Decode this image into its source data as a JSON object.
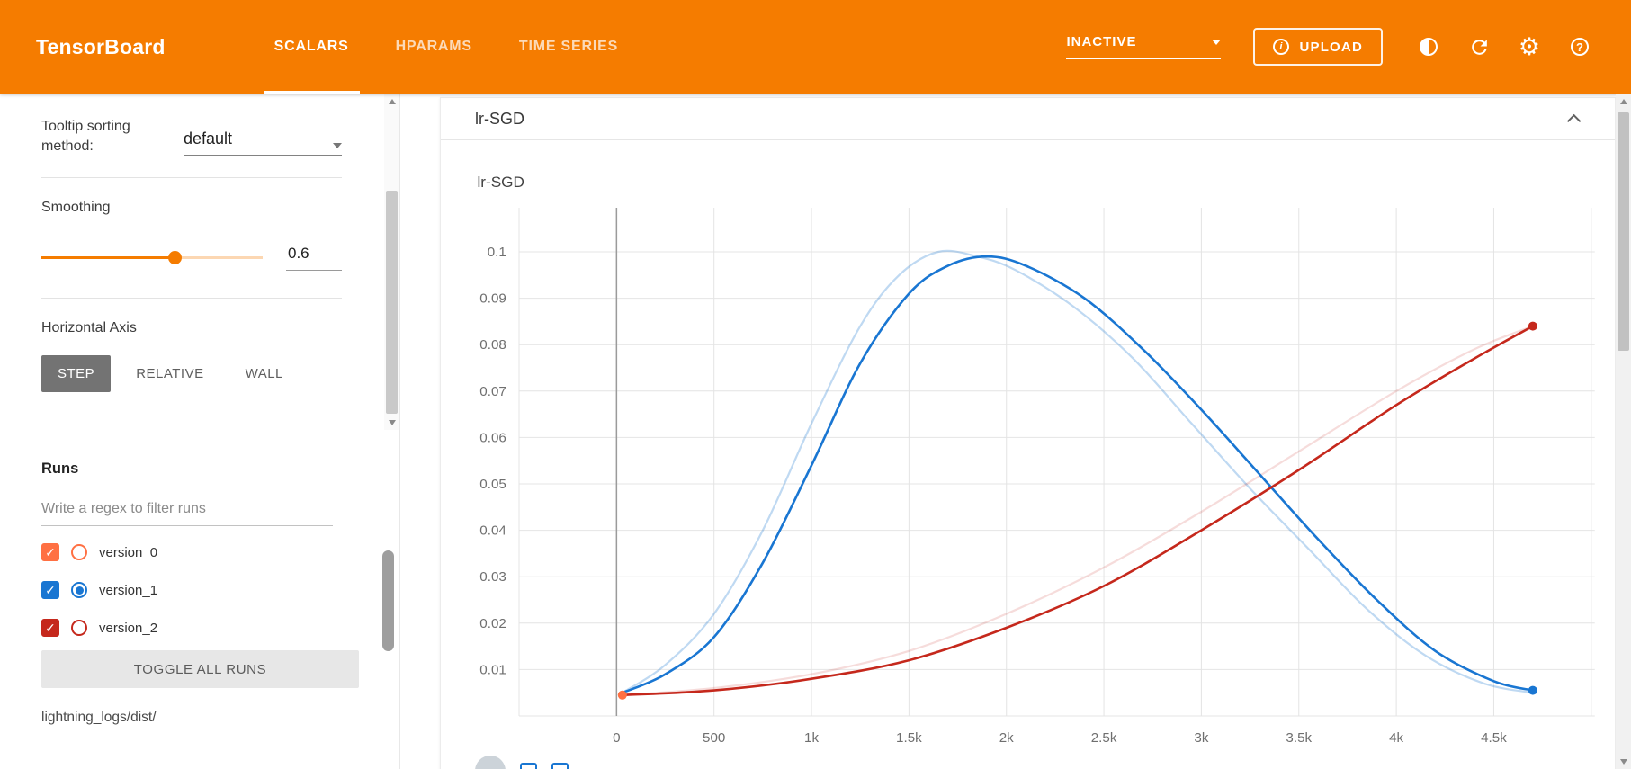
{
  "header": {
    "logo": "TensorBoard",
    "tabs": [
      {
        "label": "SCALARS",
        "active": true
      },
      {
        "label": "HPARAMS",
        "active": false
      },
      {
        "label": "TIME SERIES",
        "active": false
      }
    ],
    "status_dropdown": "INACTIVE",
    "upload_label": "UPLOAD",
    "icons": [
      {
        "name": "info-icon",
        "glyph": "i"
      },
      {
        "name": "theme-toggle-icon",
        "glyph": "half-filled-circle"
      },
      {
        "name": "refresh-icon",
        "glyph": "circular-arrow"
      },
      {
        "name": "settings-icon",
        "glyph": "⚙"
      },
      {
        "name": "help-icon",
        "glyph": "?"
      }
    ],
    "colors": {
      "header_bg": "#f57c00",
      "active_tab_underline": "#ffffff"
    }
  },
  "sidebar": {
    "tooltip_sorting": {
      "label": "Tooltip sorting method:",
      "value": "default"
    },
    "smoothing": {
      "label": "Smoothing",
      "value": "0.6",
      "percent": 60,
      "accent": "#f57c00"
    },
    "horizontal_axis": {
      "label": "Horizontal Axis",
      "options": [
        "STEP",
        "RELATIVE",
        "WALL"
      ],
      "selected": "STEP"
    },
    "runs": {
      "label": "Runs",
      "filter_placeholder": "Write a regex to filter runs",
      "items": [
        {
          "name": "version_0",
          "color": "#ff7043",
          "checked": true,
          "radio_selected": false
        },
        {
          "name": "version_1",
          "color": "#1976d2",
          "checked": true,
          "radio_selected": true
        },
        {
          "name": "version_2",
          "color": "#c5281c",
          "checked": true,
          "radio_selected": false
        }
      ],
      "toggle_all_label": "TOGGLE ALL RUNS",
      "log_path": "lightning_logs/dist/"
    }
  },
  "main": {
    "card_title": "lr-SGD"
  },
  "chart_data": {
    "type": "line",
    "title": "lr-SGD",
    "xlabel": "",
    "ylabel": "",
    "xlim": [
      -500,
      5018
    ],
    "ylim": [
      0,
      0.1095
    ],
    "grid": true,
    "grid_color": "#e4e4e4",
    "zero_line_color": "#9b9b9b",
    "tick_color": "#6f6f6f",
    "x_ticks": [
      {
        "v": 0,
        "label": "0"
      },
      {
        "v": 500,
        "label": "500"
      },
      {
        "v": 1000,
        "label": "1k"
      },
      {
        "v": 1500,
        "label": "1.5k"
      },
      {
        "v": 2000,
        "label": "2k"
      },
      {
        "v": 2500,
        "label": "2.5k"
      },
      {
        "v": 3000,
        "label": "3k"
      },
      {
        "v": 3500,
        "label": "3.5k"
      },
      {
        "v": 4000,
        "label": "4k"
      },
      {
        "v": 4500,
        "label": "4.5k"
      },
      {
        "v": 5000,
        "label": ""
      }
    ],
    "y_ticks": [
      {
        "v": 0.01,
        "label": "0.01"
      },
      {
        "v": 0.02,
        "label": "0.02"
      },
      {
        "v": 0.03,
        "label": "0.03"
      },
      {
        "v": 0.04,
        "label": "0.04"
      },
      {
        "v": 0.05,
        "label": "0.05"
      },
      {
        "v": 0.06,
        "label": "0.06"
      },
      {
        "v": 0.07,
        "label": "0.07"
      },
      {
        "v": 0.08,
        "label": "0.08"
      },
      {
        "v": 0.09,
        "label": "0.09"
      },
      {
        "v": 0.1,
        "label": "0.1"
      }
    ],
    "series": [
      {
        "name": "version_1 (unsmoothed)",
        "color": "#1976d2",
        "opacity": 0.28,
        "width": 2.2,
        "x": [
          30,
          250,
          500,
          750,
          1000,
          1250,
          1450,
          1650,
          1850,
          2050,
          2350,
          2650,
          2950,
          3250,
          3550,
          3850,
          4150,
          4450,
          4700
        ],
        "y": [
          0.005,
          0.011,
          0.022,
          0.04,
          0.063,
          0.084,
          0.095,
          0.1,
          0.099,
          0.096,
          0.088,
          0.077,
          0.063,
          0.049,
          0.036,
          0.023,
          0.013,
          0.007,
          0.005
        ]
      },
      {
        "name": "version_2 (unsmoothed)",
        "color": "#c5281c",
        "opacity": 0.16,
        "width": 2.2,
        "x": [
          30,
          500,
          1000,
          1500,
          2000,
          2500,
          3000,
          3500,
          4000,
          4400,
          4700
        ],
        "y": [
          0.0045,
          0.006,
          0.009,
          0.014,
          0.022,
          0.032,
          0.044,
          0.057,
          0.07,
          0.079,
          0.084
        ]
      },
      {
        "name": "version_1 (smoothed 0.6)",
        "color": "#1976d2",
        "opacity": 1,
        "width": 2.6,
        "marker": [
          4700,
          0.0055
        ],
        "x": [
          30,
          250,
          500,
          750,
          1000,
          1250,
          1500,
          1700,
          1900,
          2100,
          2400,
          2700,
          3000,
          3300,
          3600,
          3900,
          4200,
          4500,
          4700
        ],
        "y": [
          0.005,
          0.009,
          0.017,
          0.033,
          0.054,
          0.076,
          0.091,
          0.097,
          0.099,
          0.097,
          0.09,
          0.079,
          0.066,
          0.052,
          0.038,
          0.025,
          0.014,
          0.0075,
          0.0055
        ]
      },
      {
        "name": "version_2 (smoothed 0.6)",
        "color": "#c5281c",
        "opacity": 1,
        "width": 2.6,
        "marker": [
          4700,
          0.084
        ],
        "x": [
          30,
          500,
          1000,
          1500,
          2000,
          2500,
          3000,
          3500,
          4000,
          4400,
          4700
        ],
        "y": [
          0.0045,
          0.0055,
          0.008,
          0.012,
          0.019,
          0.028,
          0.04,
          0.053,
          0.067,
          0.077,
          0.084
        ]
      },
      {
        "name": "version_0",
        "color": "#ff7043",
        "opacity": 1,
        "width": 2.6,
        "marker": [
          30,
          0.0045
        ],
        "x": [
          30
        ],
        "y": [
          0.0045
        ]
      }
    ]
  }
}
